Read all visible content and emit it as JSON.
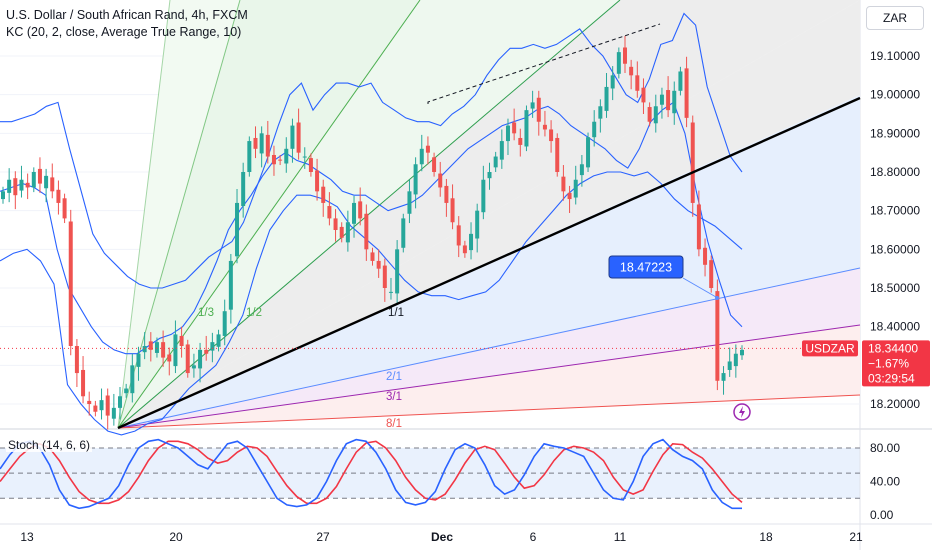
{
  "header": {
    "title": "U.S. Dollar / South African Rand, 4h, FXCM",
    "indicator": "KC (20, 2, close, Average True Range, 10)",
    "currency": "ZAR"
  },
  "price_label": {
    "symbol": "USDZAR",
    "price": "18.34400",
    "change": "−1.67%",
    "countdown": "03:29:54"
  },
  "callout": "18.47223",
  "fan_labels": [
    "1/3",
    "1/2",
    "1/1",
    "2/1",
    "3/1",
    "8/1"
  ],
  "stoch": {
    "label": "Stoch (14, 6, 6)",
    "ticks": [
      "80.00",
      "40.00",
      "0.00"
    ]
  },
  "x_ticks": [
    "13",
    "20",
    "27",
    "Dec",
    "6",
    "11",
    "18",
    "21"
  ],
  "colors": {
    "up": "#26a69a",
    "down": "#ef5350",
    "keltner": "#2962ff",
    "trend": "#000000",
    "stoch_k": "#2962ff",
    "stoch_d": "#f23645",
    "price_tag": "#f23645",
    "callout": "#2962ff"
  },
  "chart_data": [
    {
      "type": "line",
      "y_ticks": [
        18.2,
        18.3,
        18.4,
        18.5,
        18.6,
        18.7,
        18.8,
        18.9,
        19.0,
        19.1
      ],
      "ylim": [
        18.13,
        19.22
      ],
      "x_tick_labels": [
        "13",
        "20",
        "27",
        "Dec",
        "6",
        "11",
        "18",
        "21"
      ],
      "series": [
        {
          "values": [
            18.75,
            18.78,
            18.74,
            18.78,
            18.76,
            18.8,
            18.77,
            18.79,
            18.75,
            18.72,
            18.68,
            18.35,
            18.28,
            18.22,
            18.2,
            18.18,
            18.21,
            18.17,
            18.19,
            18.22,
            18.24,
            18.3,
            18.33,
            18.35,
            18.34,
            18.36,
            18.32,
            18.31,
            18.38,
            18.35,
            18.28,
            18.3,
            18.34,
            18.33,
            18.36,
            18.38,
            18.44,
            18.57,
            18.72,
            18.8,
            18.88,
            18.86,
            18.9,
            18.84,
            18.82,
            18.83,
            18.86,
            18.92,
            18.85,
            18.84,
            18.8,
            18.75,
            18.72,
            18.68,
            18.65,
            18.63,
            18.67,
            18.72,
            18.68,
            18.6,
            18.57,
            18.55,
            18.5,
            18.49,
            18.6,
            18.68,
            18.75,
            18.82,
            18.86,
            18.85,
            18.8,
            18.76,
            18.72,
            18.67,
            18.61,
            18.59,
            18.64,
            18.7,
            18.78,
            18.8,
            18.84,
            18.88,
            18.92,
            18.9,
            18.87,
            18.96,
            18.98,
            18.93,
            18.91,
            18.88,
            18.8,
            18.75,
            18.73,
            18.78,
            18.82,
            18.89,
            18.93,
            18.97,
            19.02,
            19.05,
            19.11,
            19.08,
            19.05,
            19.01,
            18.98,
            18.93,
            18.97,
            19.0,
            18.96,
            19.01,
            19.06,
            18.94,
            18.72,
            18.6,
            18.56,
            18.5,
            18.26,
            18.28,
            18.31,
            18.33,
            18.34
          ]
        },
        {
          "values": [
            18.93,
            18.93,
            18.94,
            18.95,
            18.97,
            18.98,
            18.86,
            18.75,
            18.64,
            18.59,
            18.56,
            18.53,
            18.51,
            18.5,
            18.5,
            18.51,
            18.52,
            18.55,
            18.58,
            18.6,
            18.62,
            18.67,
            18.75,
            18.83,
            18.92,
            19.0,
            19.03,
            18.96,
            19.0,
            19.03,
            19.03,
            19.02,
            19.03,
            18.98,
            18.96,
            18.94,
            18.93,
            18.93,
            18.92,
            18.95,
            18.97,
            19.0,
            19.05,
            19.09,
            19.12,
            19.12,
            19.13,
            19.12,
            19.13,
            19.15,
            19.17,
            19.13,
            19.1,
            19.05,
            19.0,
            18.98,
            19.04,
            19.13,
            19.14,
            19.21,
            19.18,
            19.02,
            18.93,
            18.84,
            18.8
          ]
        },
        {
          "values": [
            18.75,
            18.76,
            18.77,
            18.76,
            18.74,
            18.6,
            18.5,
            18.45,
            18.4,
            18.36,
            18.34,
            18.33,
            18.33,
            18.35,
            18.37,
            18.38,
            18.4,
            18.44,
            18.5,
            18.57,
            18.65,
            18.7,
            18.74,
            18.79,
            18.83,
            18.85,
            18.83,
            18.82,
            18.8,
            18.78,
            18.75,
            18.74,
            18.74,
            18.72,
            18.7,
            18.71,
            18.72,
            18.74,
            18.77,
            18.8,
            18.83,
            18.86,
            18.88,
            18.9,
            18.92,
            18.93,
            18.94,
            18.96,
            18.97,
            18.95,
            18.92,
            18.9,
            18.88,
            18.86,
            18.83,
            18.81,
            18.86,
            18.93,
            18.96,
            18.98,
            18.9,
            18.75,
            18.62,
            18.52,
            18.43,
            18.4
          ]
        },
        {
          "values": [
            18.57,
            18.59,
            18.6,
            18.57,
            18.51,
            18.25,
            18.2,
            18.16,
            18.13,
            18.12,
            18.13,
            18.15,
            18.16,
            18.2,
            18.24,
            18.27,
            18.3,
            18.36,
            18.43,
            18.55,
            18.65,
            18.7,
            18.74,
            18.74,
            18.73,
            18.71,
            18.66,
            18.63,
            18.6,
            18.56,
            18.52,
            18.49,
            18.48,
            18.48,
            18.47,
            18.48,
            18.49,
            18.52,
            18.57,
            18.62,
            18.66,
            18.7,
            18.74,
            18.77,
            18.79,
            18.8,
            18.8,
            18.79,
            18.8,
            18.77,
            18.73,
            18.7,
            18.68,
            18.66,
            18.63,
            18.6
          ]
        }
      ]
    },
    {
      "type": "line",
      "y_ticks": [
        0,
        40,
        80
      ],
      "ylim": [
        -5,
        100
      ],
      "series": [
        {
          "values": [
            55,
            72,
            85,
            88,
            80,
            60,
            30,
            12,
            8,
            10,
            15,
            20,
            35,
            60,
            80,
            88,
            90,
            85,
            80,
            70,
            60,
            55,
            70,
            85,
            88,
            80,
            60,
            40,
            20,
            12,
            10,
            12,
            20,
            40,
            65,
            85,
            90,
            88,
            75,
            55,
            30,
            15,
            12,
            15,
            28,
            55,
            78,
            85,
            80,
            60,
            35,
            25,
            30,
            48,
            70,
            85,
            82,
            80,
            75,
            70,
            50,
            30,
            20,
            18,
            40,
            70,
            85,
            90,
            78,
            70,
            65,
            55,
            30,
            15,
            8,
            8
          ]
        },
        {
          "values": [
            40,
            55,
            70,
            80,
            85,
            80,
            65,
            45,
            28,
            18,
            14,
            14,
            18,
            28,
            45,
            65,
            80,
            88,
            88,
            85,
            78,
            68,
            62,
            65,
            75,
            82,
            80,
            70,
            52,
            35,
            22,
            14,
            14,
            20,
            34,
            55,
            75,
            86,
            88,
            80,
            65,
            45,
            30,
            20,
            18,
            25,
            42,
            62,
            78,
            82,
            78,
            62,
            45,
            32,
            35,
            48,
            65,
            78,
            82,
            80,
            75,
            65,
            45,
            30,
            25,
            30,
            52,
            72,
            85,
            84,
            75,
            68,
            55,
            40,
            25,
            15
          ]
        }
      ]
    }
  ]
}
